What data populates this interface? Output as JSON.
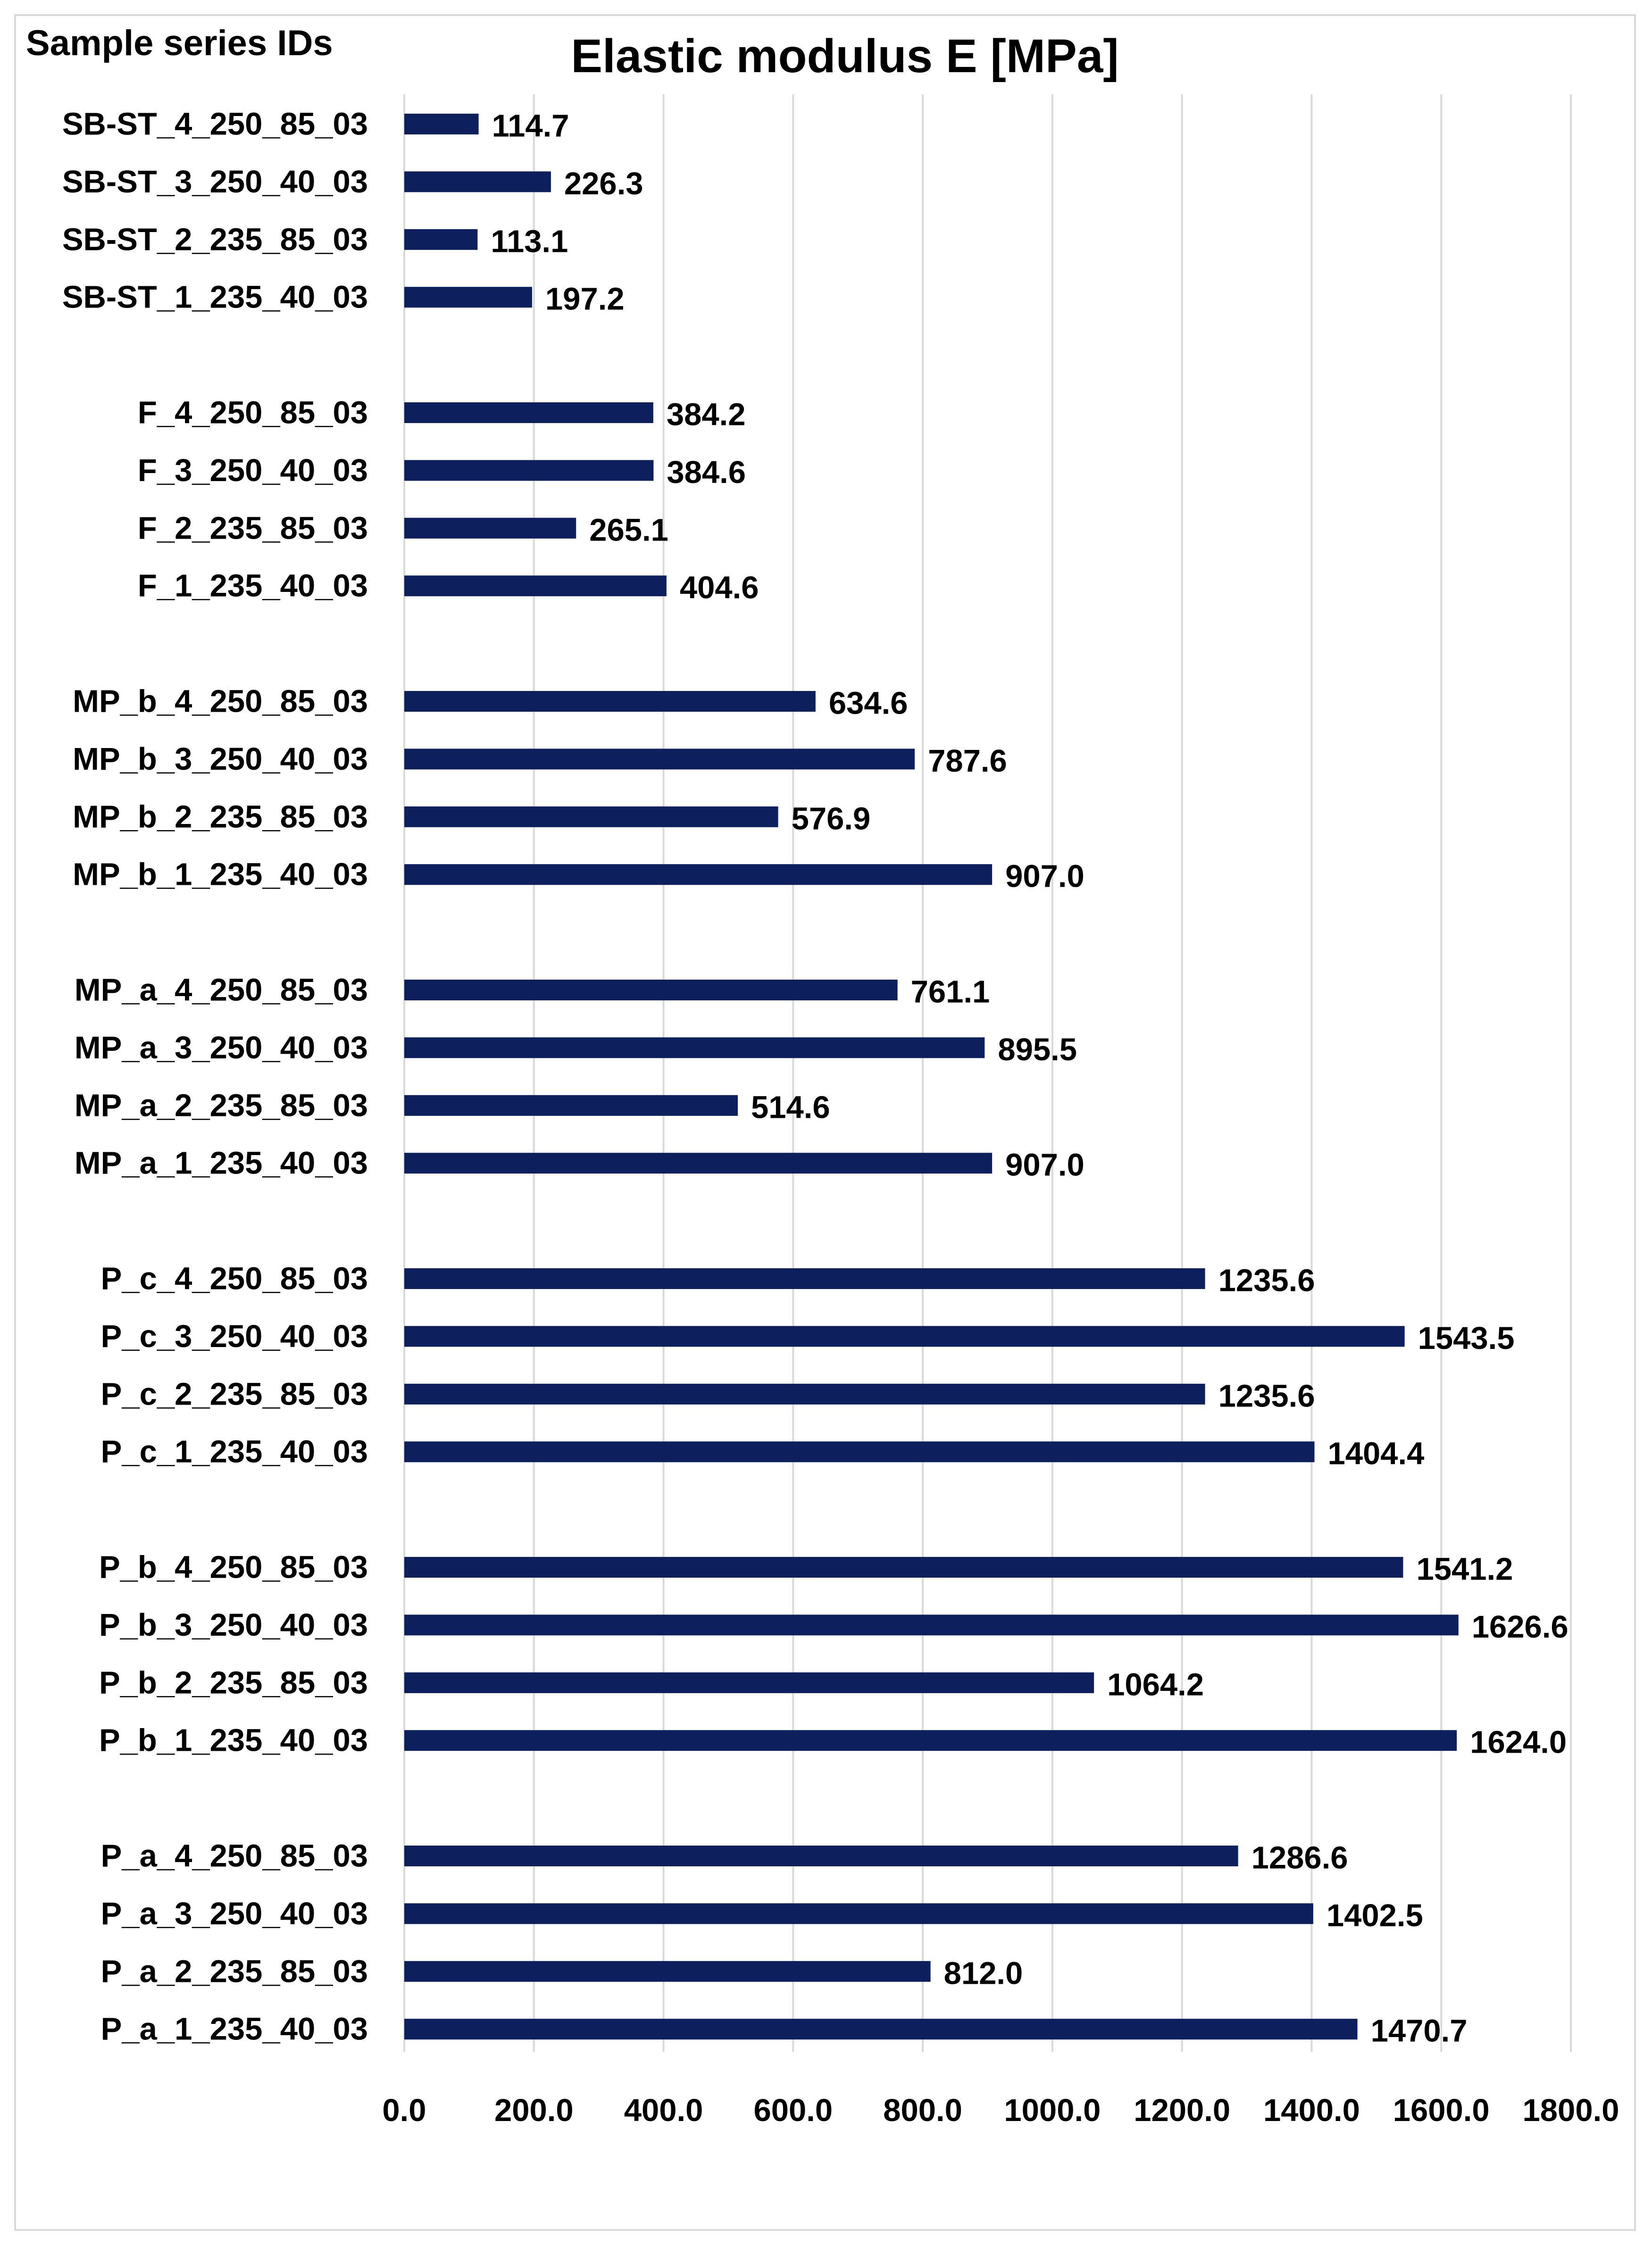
{
  "header": {
    "left_label": "Sample series IDs",
    "title": "Elastic modulus E [MPa]"
  },
  "chart_data": {
    "type": "bar",
    "orientation": "horizontal",
    "title": "Elastic modulus E [MPa]",
    "ylabel": "Sample series IDs",
    "xlabel": "",
    "xlim": [
      0,
      1800
    ],
    "x_ticks": [
      0,
      200,
      400,
      600,
      800,
      1000,
      1200,
      1400,
      1600,
      1800
    ],
    "x_tick_labels": [
      "0.0",
      "200.0",
      "400.0",
      "600.0",
      "800.0",
      "1000.0",
      "1200.0",
      "1400.0",
      "1600.0",
      "1800.0"
    ],
    "grid": "vertical",
    "bar_color": "#0d1f5c",
    "grid_color": "#d9d9d9",
    "groups": [
      {
        "categories": [
          "SB-ST_4_250_85_03",
          "SB-ST_3_250_40_03",
          "SB-ST_2_235_85_03",
          "SB-ST_1_235_40_03"
        ],
        "values": [
          114.7,
          226.3,
          113.1,
          197.2
        ],
        "labels": [
          "114.7",
          "226.3",
          "113.1",
          "197.2"
        ]
      },
      {
        "categories": [
          "F_4_250_85_03",
          "F_3_250_40_03",
          "F_2_235_85_03",
          "F_1_235_40_03"
        ],
        "values": [
          384.2,
          384.6,
          265.1,
          404.6
        ],
        "labels": [
          "384.2",
          "384.6",
          "265.1",
          "404.6"
        ]
      },
      {
        "categories": [
          "MP_b_4_250_85_03",
          "MP_b_3_250_40_03",
          "MP_b_2_235_85_03",
          "MP_b_1_235_40_03"
        ],
        "values": [
          634.6,
          787.6,
          576.9,
          907.0
        ],
        "labels": [
          "634.6",
          "787.6",
          "576.9",
          "907.0"
        ]
      },
      {
        "categories": [
          "MP_a_4_250_85_03",
          "MP_a_3_250_40_03",
          "MP_a_2_235_85_03",
          "MP_a_1_235_40_03"
        ],
        "values": [
          761.1,
          895.5,
          514.6,
          907.0
        ],
        "labels": [
          "761.1",
          "895.5",
          "514.6",
          "907.0"
        ]
      },
      {
        "categories": [
          "P_c_4_250_85_03",
          "P_c_3_250_40_03",
          "P_c_2_235_85_03",
          "P_c_1_235_40_03"
        ],
        "values": [
          1235.6,
          1543.5,
          1235.6,
          1404.4
        ],
        "labels": [
          "1235.6",
          "1543.5",
          "1235.6",
          "1404.4"
        ]
      },
      {
        "categories": [
          "P_b_4_250_85_03",
          "P_b_3_250_40_03",
          "P_b_2_235_85_03",
          "P_b_1_235_40_03"
        ],
        "values": [
          1541.2,
          1626.6,
          1064.2,
          1624.0
        ],
        "labels": [
          "1541.2",
          "1626.6",
          "1064.2",
          "1624.0"
        ]
      },
      {
        "categories": [
          "P_a_4_250_85_03",
          "P_a_3_250_40_03",
          "P_a_2_235_85_03",
          "P_a_1_235_40_03"
        ],
        "values": [
          1286.6,
          1402.5,
          812.0,
          1470.7
        ],
        "labels": [
          "1286.6",
          "1402.5",
          "812.0",
          "1470.7"
        ]
      }
    ]
  }
}
